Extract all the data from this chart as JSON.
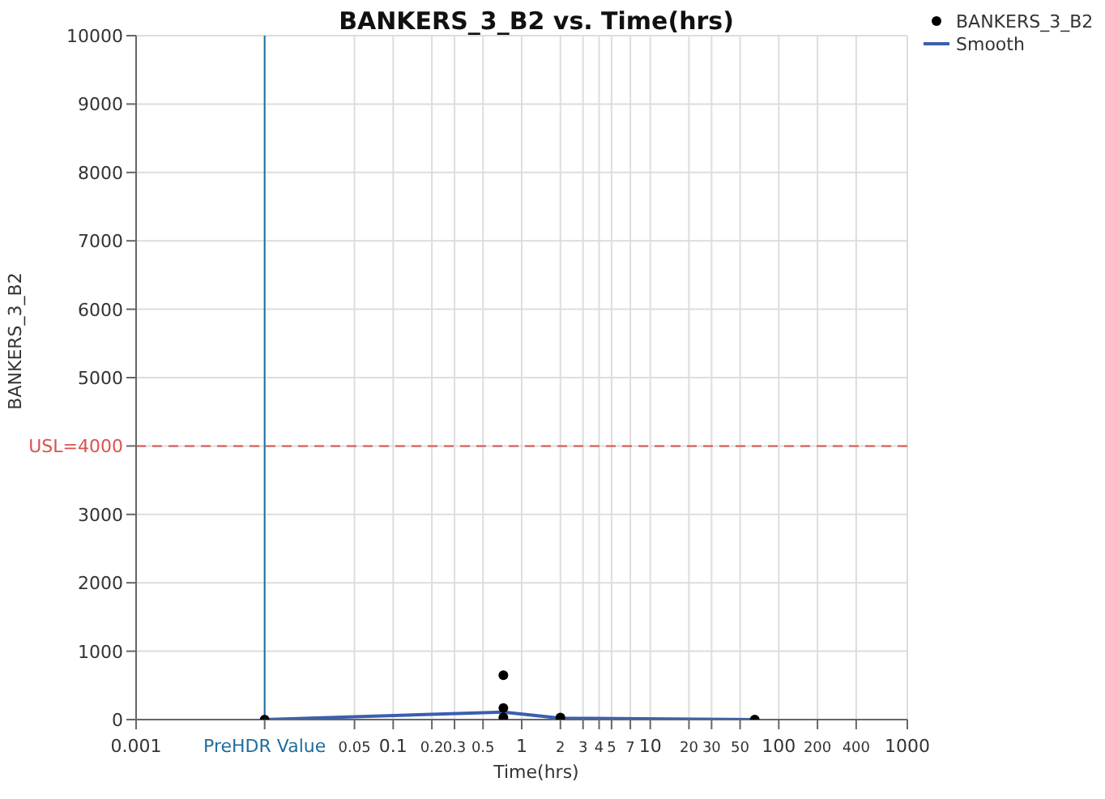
{
  "chart_data": {
    "type": "scatter",
    "title": "BANKERS_3_B2 vs. Time(hrs)",
    "xlabel": "Time(hrs)",
    "ylabel": "BANKERS_3_B2",
    "log": "x",
    "xlim": [
      0.001,
      1000
    ],
    "xticks": [
      0.001,
      {
        "value": 0.01,
        "label": "PreHDR Value"
      },
      0.05,
      0.1,
      0.2,
      0.3,
      0.5,
      1,
      2,
      3,
      4,
      5,
      7,
      10,
      20,
      30,
      50,
      100,
      200,
      400,
      1000
    ],
    "ylim": [
      0,
      10000
    ],
    "yticks": [
      0,
      1000,
      2000,
      3000,
      {
        "value": 4000,
        "label": "USL=4000"
      },
      5000,
      6000,
      7000,
      8000,
      9000,
      10000
    ],
    "grid": true,
    "legend": "top right",
    "marker": "circle",
    "series": [
      {
        "name": "BANKERS_3_B2",
        "color": "#000000",
        "x": [
          0.01,
          0.72,
          0.72,
          0.72,
          2,
          65
        ],
        "values": [
          0,
          650,
          170,
          30,
          30,
          0
        ]
      },
      {
        "name": "Smooth",
        "type": "line",
        "color": "#3a5fb0",
        "marker": "none",
        "x": [
          0.01,
          0.72,
          2,
          65
        ],
        "values": [
          0,
          110,
          20,
          0
        ]
      }
    ],
    "ref_lines": [
      {
        "axis": "y",
        "value": 4000,
        "color": "#d9534f",
        "line_style": "dashed"
      },
      {
        "axis": "x",
        "value": 0.01,
        "color": "#1f6e9c",
        "line_style": "solid"
      }
    ]
  }
}
